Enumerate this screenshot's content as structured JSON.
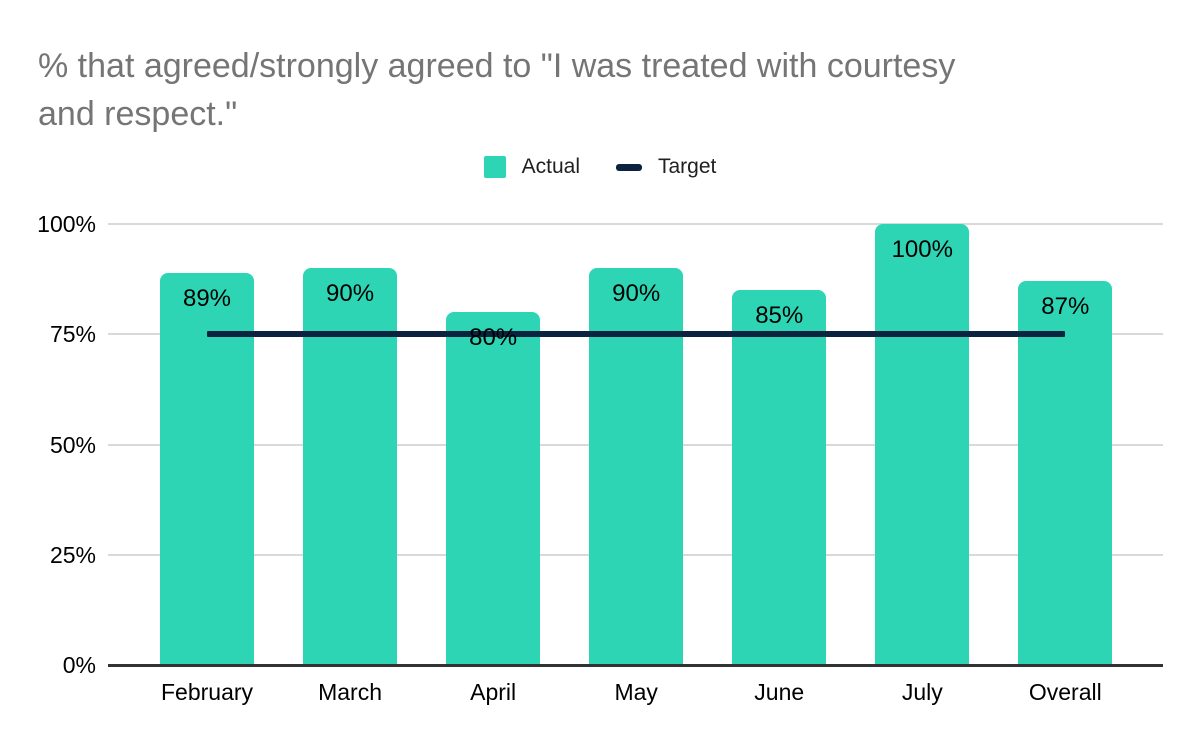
{
  "title": {
    "line1": "% that agreed/strongly agreed to \"I was treated with courtesy",
    "line2": "and respect.\""
  },
  "legend": [
    {
      "name": "Actual",
      "swatch": "square",
      "color": "#2ed5b5"
    },
    {
      "name": "Target",
      "swatch": "line",
      "color": "#0c2340"
    }
  ],
  "chart_data": {
    "type": "bar",
    "title": "% that agreed/strongly agreed to \"I was treated with courtesy and respect.\"",
    "categories": [
      "February",
      "March",
      "April",
      "May",
      "June",
      "July",
      "Overall"
    ],
    "series": [
      {
        "name": "Actual",
        "type": "bar",
        "values": [
          89,
          90,
          80,
          90,
          85,
          100,
          87
        ],
        "color": "#2ed5b5"
      },
      {
        "name": "Target",
        "type": "line",
        "value": 75,
        "color": "#0c2340"
      }
    ],
    "bar_labels": [
      "89%",
      "90%",
      "80%",
      "90%",
      "85%",
      "100%",
      "87%"
    ],
    "xlabel": "",
    "ylabel": "",
    "ylim": [
      0,
      100
    ],
    "yticks": [
      {
        "value": 0,
        "label": "0%"
      },
      {
        "value": 25,
        "label": "25%"
      },
      {
        "value": 50,
        "label": "50%"
      },
      {
        "value": 75,
        "label": "75%"
      },
      {
        "value": 100,
        "label": "100%"
      }
    ],
    "grid": true,
    "legend_position": "top-center"
  },
  "colors": {
    "bar": "#2ed5b5",
    "target_line": "#0c2340",
    "title_text": "#757575",
    "axis_text": "#000000",
    "gridline": "#d9d9d9",
    "axis_line": "#333333",
    "background": "#ffffff"
  }
}
